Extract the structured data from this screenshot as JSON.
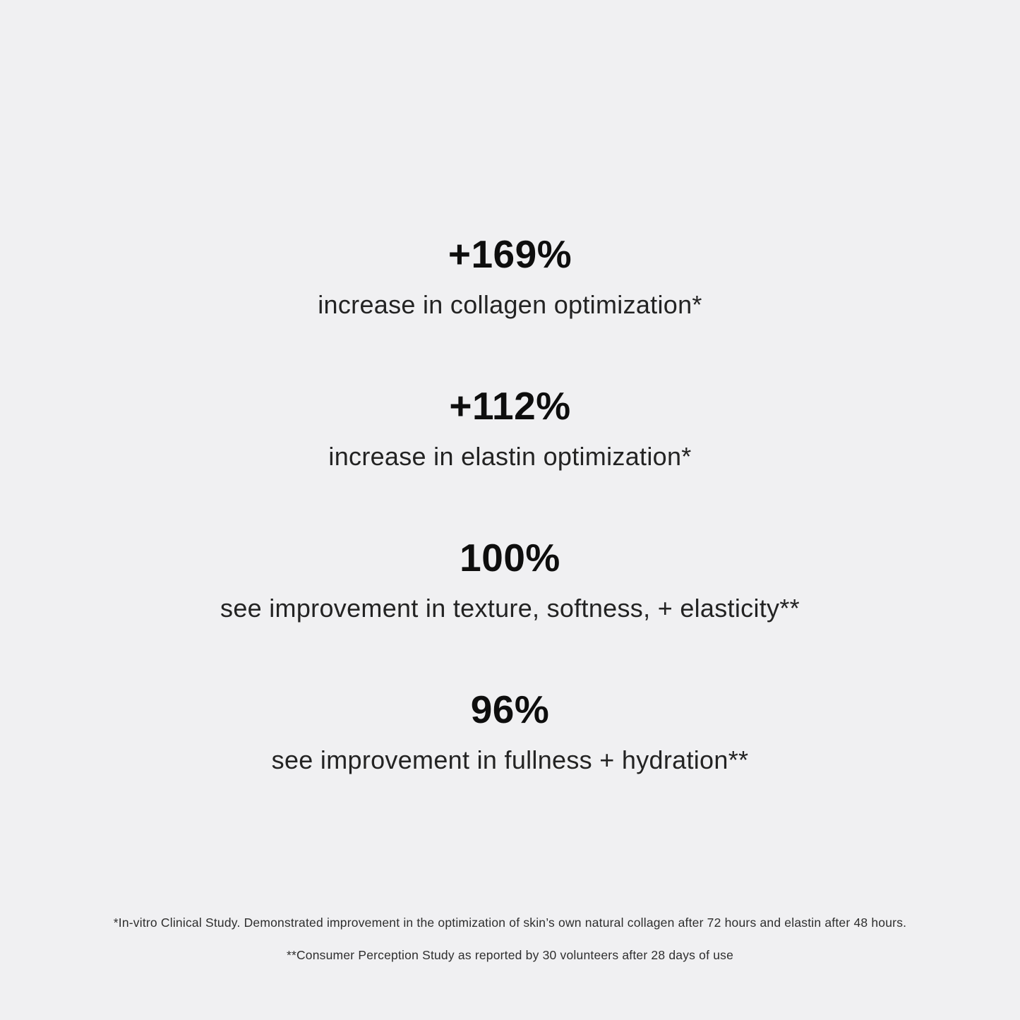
{
  "page": {
    "background_color": "#f0f0f2",
    "number_color": "#0e0e0e",
    "label_color": "#232323",
    "footnote_color": "#2e2e2e"
  },
  "stats": [
    {
      "value": "+169%",
      "label": "increase in collagen optimization*"
    },
    {
      "value": "+112%",
      "label": "increase in elastin optimization*"
    },
    {
      "value": "100%",
      "label": "see improvement in texture, softness, + elasticity**"
    },
    {
      "value": "96%",
      "label": "see improvement in fullness + hydration**"
    }
  ],
  "footnotes": [
    "*In-vitro Clinical Study. Demonstrated improvement in the optimization of skin’s own natural collagen after 72 hours and elastin after 48 hours.",
    "**Consumer Perception Study as reported by 30 volunteers after 28 days of use"
  ]
}
